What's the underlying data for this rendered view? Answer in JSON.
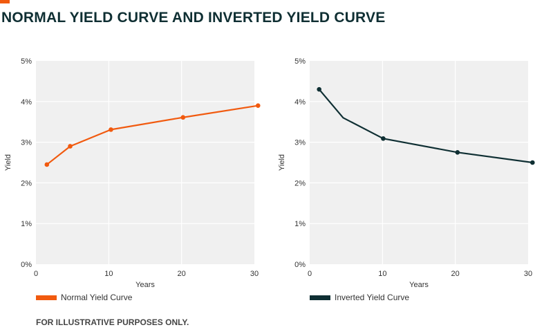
{
  "page": {
    "title": "NORMAL YIELD CURVE AND INVERTED YIELD CURVE",
    "footnote": "FOR ILLUSTRATIVE PURPOSES ONLY.",
    "colors": {
      "accent": "#f15a0f",
      "title": "#0f2f33",
      "plot_background": "#f0f0f0",
      "gridline": "#ffffff"
    }
  },
  "chart_data": [
    {
      "type": "line",
      "title": "",
      "xlabel": "Years",
      "ylabel": "Yield",
      "xlim": [
        0,
        30
      ],
      "ylim": [
        0,
        5
      ],
      "x_ticks": [
        "0",
        "10",
        "20",
        "30"
      ],
      "y_ticks": [
        "0%",
        "1%",
        "2%",
        "3%",
        "4%",
        "5%"
      ],
      "grid": true,
      "legend": "bottom-left",
      "series": [
        {
          "name": "Normal Yield Curve",
          "color": "#f15a0f",
          "points": [
            {
              "x": 1.5,
              "y": 2.45
            },
            {
              "x": 4.7,
              "y": 2.9
            },
            {
              "x": 10.3,
              "y": 3.31
            },
            {
              "x": 20.2,
              "y": 3.61
            },
            {
              "x": 30.5,
              "y": 3.9
            }
          ],
          "markers_at": [
            0,
            1,
            2,
            3,
            4
          ]
        }
      ]
    },
    {
      "type": "line",
      "title": "",
      "xlabel": "Years",
      "ylabel": "Yield",
      "xlim": [
        0,
        30
      ],
      "ylim": [
        0,
        5
      ],
      "x_ticks": [
        "0",
        "10",
        "20",
        "30"
      ],
      "y_ticks": [
        "0%",
        "1%",
        "2%",
        "3%",
        "4%",
        "5%"
      ],
      "grid": true,
      "legend": "bottom-left",
      "series": [
        {
          "name": "Inverted Yield Curve",
          "color": "#0f2f33",
          "points": [
            {
              "x": 1.3,
              "y": 4.3
            },
            {
              "x": 4.6,
              "y": 3.6
            },
            {
              "x": 10.1,
              "y": 3.09
            },
            {
              "x": 20.3,
              "y": 2.75
            },
            {
              "x": 30.6,
              "y": 2.5
            }
          ],
          "markers_at": [
            0,
            2,
            3,
            4
          ]
        }
      ]
    }
  ]
}
